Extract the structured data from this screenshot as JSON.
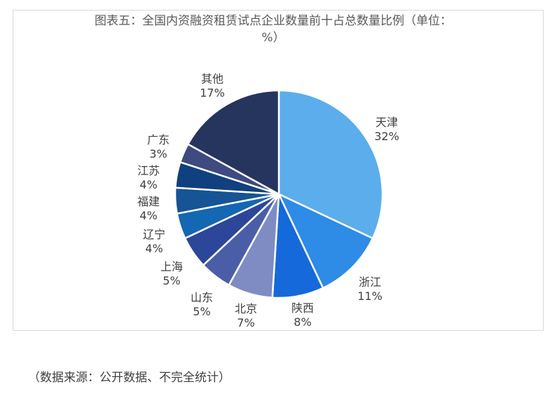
{
  "chart_data": {
    "type": "pie",
    "title": "图表五：全国内资融资租赁试点企业数量前十占总数量比例（单位：%）",
    "title_lines": [
      "图表五：全国内资融资租赁试点企业数量前十占总数量比例（单位：",
      "%）"
    ],
    "slices": [
      {
        "label": "天津",
        "value": 32,
        "value_label": "32%",
        "color": "#5BAEEB"
      },
      {
        "label": "浙江",
        "value": 11,
        "value_label": "11%",
        "color": "#2E8BE6"
      },
      {
        "label": "陕西",
        "value": 8,
        "value_label": "8%",
        "color": "#1569DA"
      },
      {
        "label": "北京",
        "value": 7,
        "value_label": "7%",
        "color": "#7F8CC4"
      },
      {
        "label": "山东",
        "value": 5,
        "value_label": "5%",
        "color": "#4A5EA8"
      },
      {
        "label": "上海",
        "value": 5,
        "value_label": "5%",
        "color": "#2C4699"
      },
      {
        "label": "辽宁",
        "value": 4,
        "value_label": "4%",
        "color": "#1467B3"
      },
      {
        "label": "福建",
        "value": 4,
        "value_label": "4%",
        "color": "#165495"
      },
      {
        "label": "江苏",
        "value": 4,
        "value_label": "4%",
        "color": "#11407E"
      },
      {
        "label": "广东",
        "value": 3,
        "value_label": "3%",
        "color": "#3E4A80"
      },
      {
        "label": "其他",
        "value": 17,
        "value_label": "17%",
        "color": "#26355E"
      }
    ]
  },
  "footer": {
    "source": "（数据来源：公开数据、不完全统计）"
  }
}
